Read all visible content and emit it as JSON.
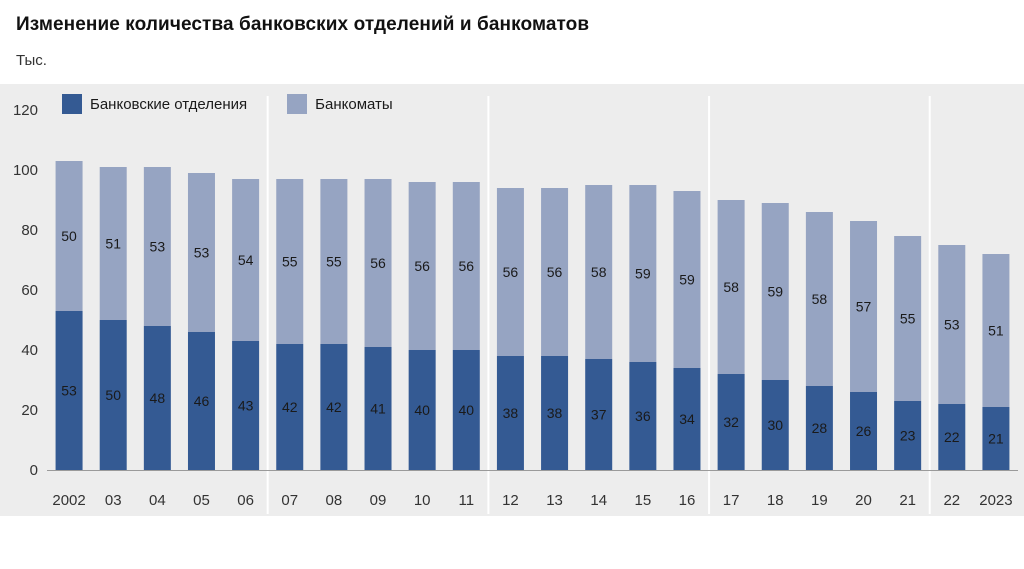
{
  "title": "Изменение количества банковских отделений и банкоматов",
  "unit_label": "Тыс.",
  "colors": {
    "branches": "#345a93",
    "atms": "#96a4c2",
    "panel_bg": "#ededed",
    "separator": "#ffffff"
  },
  "legend": {
    "branches_label": "Банковские отделения",
    "atms_label": "Банкоматы"
  },
  "chart_data": {
    "type": "bar",
    "stacked": true,
    "categories": [
      "2002",
      "03",
      "04",
      "05",
      "06",
      "07",
      "08",
      "09",
      "10",
      "11",
      "12",
      "13",
      "14",
      "15",
      "16",
      "17",
      "18",
      "19",
      "20",
      "21",
      "22",
      "2023"
    ],
    "series": [
      {
        "name": "Банковские отделения",
        "values": [
          53,
          50,
          48,
          46,
          43,
          42,
          42,
          41,
          40,
          40,
          38,
          38,
          37,
          36,
          34,
          32,
          30,
          28,
          26,
          23,
          22,
          21
        ]
      },
      {
        "name": "Банкоматы",
        "values": [
          50,
          51,
          53,
          53,
          54,
          55,
          55,
          56,
          56,
          56,
          56,
          56,
          58,
          59,
          59,
          58,
          59,
          58,
          57,
          55,
          53,
          51
        ]
      }
    ],
    "yticks": [
      0,
      20,
      40,
      60,
      80,
      100,
      120
    ],
    "ylim": [
      0,
      120
    ],
    "xlabel": "",
    "ylabel": "",
    "legend_position": "top-left",
    "group_separators_after": [
      "06",
      "11",
      "16",
      "21"
    ]
  }
}
